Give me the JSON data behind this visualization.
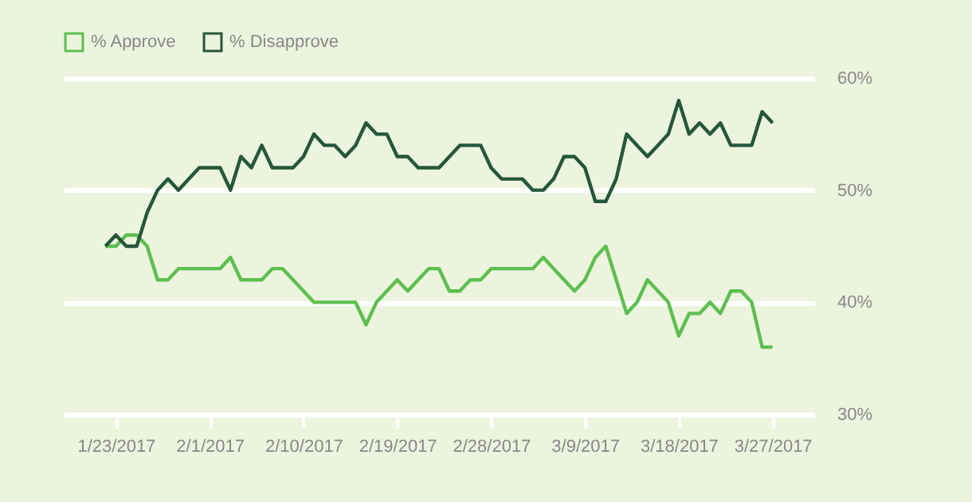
{
  "chart_data": {
    "type": "line",
    "x": [
      "2017-01-22",
      "2017-01-23",
      "2017-01-24",
      "2017-01-25",
      "2017-01-26",
      "2017-01-27",
      "2017-01-28",
      "2017-01-29",
      "2017-01-30",
      "2017-01-31",
      "2017-02-01",
      "2017-02-02",
      "2017-02-03",
      "2017-02-04",
      "2017-02-05",
      "2017-02-06",
      "2017-02-07",
      "2017-02-08",
      "2017-02-09",
      "2017-02-10",
      "2017-02-11",
      "2017-02-12",
      "2017-02-13",
      "2017-02-14",
      "2017-02-15",
      "2017-02-16",
      "2017-02-17",
      "2017-02-18",
      "2017-02-19",
      "2017-02-20",
      "2017-02-21",
      "2017-02-22",
      "2017-02-23",
      "2017-02-24",
      "2017-02-25",
      "2017-02-26",
      "2017-02-27",
      "2017-02-28",
      "2017-03-01",
      "2017-03-02",
      "2017-03-03",
      "2017-03-04",
      "2017-03-05",
      "2017-03-06",
      "2017-03-07",
      "2017-03-08",
      "2017-03-09",
      "2017-03-10",
      "2017-03-11",
      "2017-03-12",
      "2017-03-13",
      "2017-03-14",
      "2017-03-15",
      "2017-03-16",
      "2017-03-17",
      "2017-03-18",
      "2017-03-19",
      "2017-03-20",
      "2017-03-21",
      "2017-03-22",
      "2017-03-23",
      "2017-03-24",
      "2017-03-25",
      "2017-03-26",
      "2017-03-27"
    ],
    "series": [
      {
        "name": "% Approve",
        "color": "#5dbf4f",
        "values": [
          45,
          45,
          46,
          46,
          45,
          42,
          42,
          43,
          43,
          43,
          43,
          43,
          44,
          42,
          42,
          42,
          43,
          43,
          42,
          41,
          40,
          40,
          40,
          40,
          40,
          38,
          40,
          41,
          42,
          41,
          42,
          43,
          43,
          41,
          41,
          42,
          42,
          43,
          43,
          43,
          43,
          43,
          44,
          43,
          42,
          41,
          42,
          44,
          45,
          42,
          39,
          40,
          42,
          41,
          40,
          37,
          39,
          39,
          40,
          39,
          41,
          41,
          40,
          36,
          36
        ]
      },
      {
        "name": "% Disapprove",
        "color": "#25573a",
        "values": [
          45,
          46,
          45,
          45,
          48,
          50,
          51,
          50,
          51,
          52,
          52,
          52,
          50,
          53,
          52,
          54,
          52,
          52,
          52,
          53,
          55,
          54,
          54,
          53,
          54,
          56,
          55,
          55,
          53,
          53,
          52,
          52,
          52,
          53,
          54,
          54,
          54,
          52,
          51,
          51,
          51,
          50,
          50,
          51,
          53,
          53,
          52,
          49,
          49,
          51,
          55,
          54,
          53,
          54,
          55,
          58,
          55,
          56,
          55,
          56,
          54,
          54,
          54,
          57,
          56
        ]
      }
    ],
    "xlim": [
      "2017-01-18",
      "2017-03-31"
    ],
    "xticks": [
      {
        "value": "2017-01-23",
        "label": "1/23/2017"
      },
      {
        "value": "2017-02-01",
        "label": "2/1/2017"
      },
      {
        "value": "2017-02-10",
        "label": "2/10/2017"
      },
      {
        "value": "2017-02-19",
        "label": "2/19/2017"
      },
      {
        "value": "2017-02-28",
        "label": "2/28/2017"
      },
      {
        "value": "2017-03-09",
        "label": "3/9/2017"
      },
      {
        "value": "2017-03-18",
        "label": "3/18/2017"
      },
      {
        "value": "2017-03-27",
        "label": "3/27/2017"
      }
    ],
    "ylim": [
      30,
      60
    ],
    "yticks": [
      {
        "value": 30,
        "label": "30%"
      },
      {
        "value": 40,
        "label": "40%"
      },
      {
        "value": 50,
        "label": "50%"
      },
      {
        "value": 60,
        "label": "60%"
      }
    ],
    "grid": "y",
    "legend": "top left",
    "marker": "none",
    "line_style": "solid"
  }
}
